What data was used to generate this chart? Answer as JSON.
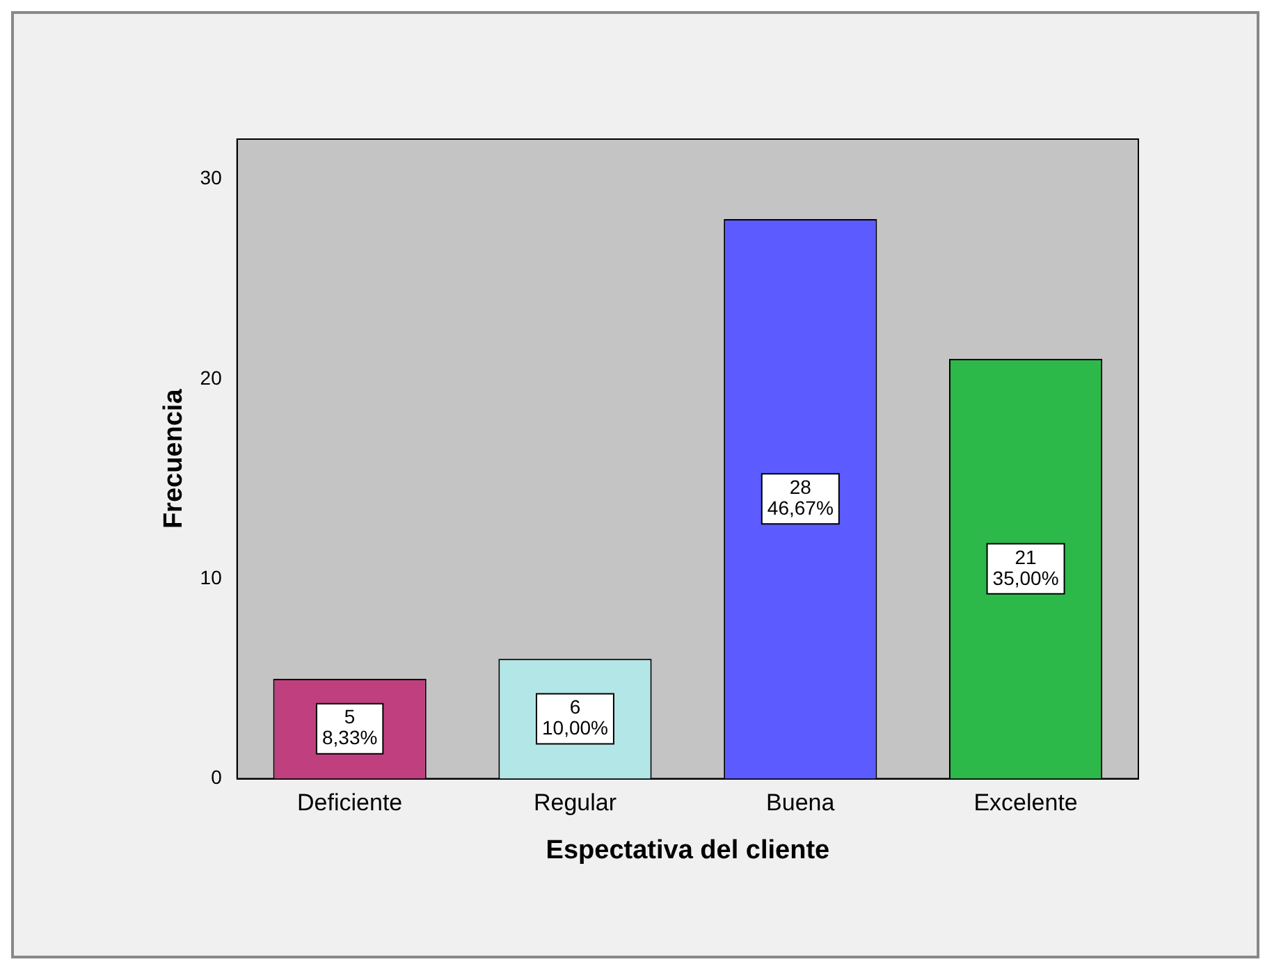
{
  "chart_data": {
    "type": "bar",
    "xlabel": "Espectativa del cliente",
    "ylabel": "Frecuencia",
    "categories": [
      "Deficiente",
      "Regular",
      "Buena",
      "Excelente"
    ],
    "values": [
      5,
      6,
      28,
      21
    ],
    "colors": [
      "#c0407f",
      "#b3e6e6",
      "#5b5bff",
      "#2db84a"
    ],
    "value_labels": [
      "5\n8,33%",
      "6\n10,00%",
      "28\n46,67%",
      "21\n35,00%"
    ],
    "ylim": [
      0,
      32
    ],
    "yticks": [
      0,
      10,
      20,
      30
    ],
    "grid": false,
    "legend": false
  }
}
